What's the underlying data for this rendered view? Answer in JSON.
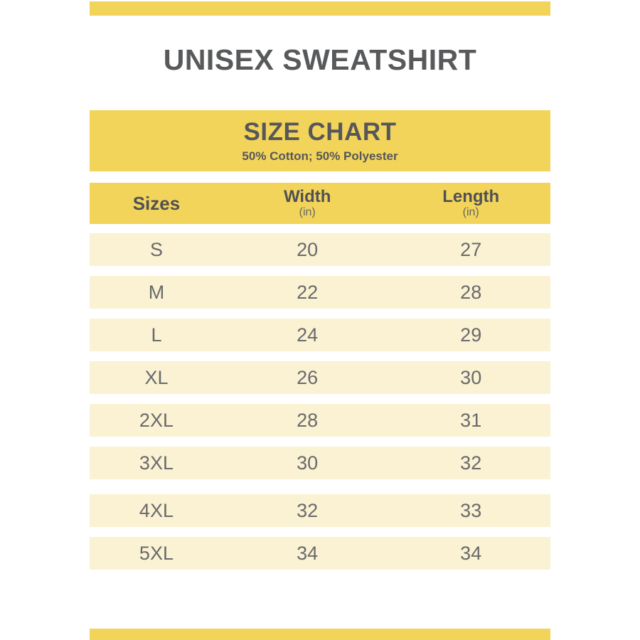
{
  "page": {
    "title": "UNISEX SWEATSHIRT"
  },
  "banner": {
    "title": "SIZE CHART",
    "subtitle": "50% Cotton; 50% Polyester"
  },
  "table": {
    "columns": [
      {
        "label": "Sizes",
        "unit": ""
      },
      {
        "label": "Width",
        "unit": "(in)"
      },
      {
        "label": "Length",
        "unit": "(in)"
      }
    ],
    "rows": [
      {
        "size": "S",
        "width": "20",
        "length": "27"
      },
      {
        "size": "M",
        "width": "22",
        "length": "28"
      },
      {
        "size": "L",
        "width": "24",
        "length": "29"
      },
      {
        "size": "XL",
        "width": "26",
        "length": "30"
      },
      {
        "size": "2XL",
        "width": "28",
        "length": "31"
      },
      {
        "size": "3XL",
        "width": "30",
        "length": "32"
      },
      {
        "size": "4XL",
        "width": "32",
        "length": "33"
      },
      {
        "size": "5XL",
        "width": "34",
        "length": "34"
      }
    ]
  },
  "colors": {
    "accent_yellow": "#f3d45a",
    "row_cream": "#faf2d2",
    "heading_text": "#58595b",
    "cell_text": "#696a6d",
    "background": "#ffffff"
  },
  "chart_data": {
    "type": "table",
    "title": "SIZE CHART",
    "subtitle": "50% Cotton; 50% Polyester",
    "columns": [
      "Sizes",
      "Width (in)",
      "Length (in)"
    ],
    "rows": [
      [
        "S",
        20,
        27
      ],
      [
        "M",
        22,
        28
      ],
      [
        "L",
        24,
        29
      ],
      [
        "XL",
        26,
        30
      ],
      [
        "2XL",
        28,
        31
      ],
      [
        "3XL",
        30,
        32
      ],
      [
        "4XL",
        32,
        33
      ],
      [
        "5XL",
        34,
        34
      ]
    ]
  }
}
